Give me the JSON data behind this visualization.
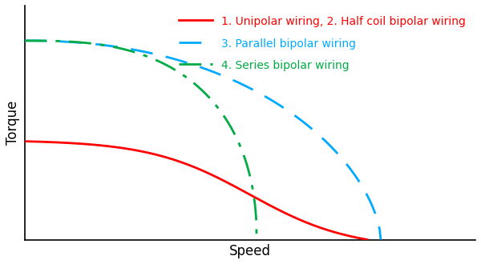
{
  "title": "",
  "xlabel": "Speed",
  "ylabel": "Torque",
  "background_color": "#ffffff",
  "xlim": [
    0,
    1
  ],
  "ylim": [
    0,
    1
  ],
  "curves": [
    {
      "label": "1. Unipolar wiring, 2. Half coil bipolar wiring",
      "color": "#ff0000",
      "linestyle": "solid",
      "linewidth": 2.0,
      "x_end": 0.76,
      "y_start": 0.42,
      "inflection": 0.5,
      "steepness": 9.0
    },
    {
      "label": "3. Parallel bipolar wiring",
      "color": "#00aaff",
      "linestyle": "dashed",
      "linewidth": 2.0,
      "x_end": 0.79,
      "y_start": 0.85,
      "alpha": 2.2,
      "beta": 0.6
    },
    {
      "label": "4. Series bipolar wiring",
      "color": "#00aa44",
      "linestyle": "dashdot",
      "linewidth": 2.0,
      "x_end": 0.515,
      "y_start": 0.85,
      "alpha": 2.8,
      "beta": 0.45
    }
  ],
  "legend_fontsize": 10,
  "axis_label_fontsize": 12
}
